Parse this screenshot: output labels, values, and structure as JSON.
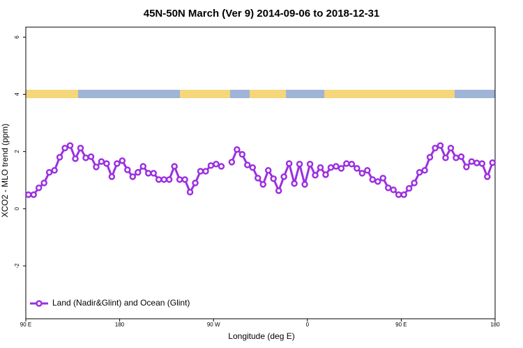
{
  "chart_data": {
    "type": "line",
    "title": "45N-50N March (Ver 9)   2014-09-06 to 2018-12-31",
    "x_label": "Longitude (deg E)",
    "y_label": "XCO2 - MLO trend (ppm)",
    "xlim": [
      90,
      540
    ],
    "ylim": [
      -3.85,
      6.35
    ],
    "xticks": [
      {
        "value": 90,
        "label": "90 E"
      },
      {
        "value": 180,
        "label": "180"
      },
      {
        "value": 270,
        "label": "90 W"
      },
      {
        "value": 360,
        "label": "0"
      },
      {
        "value": 450,
        "label": "90 E"
      },
      {
        "value": 540,
        "label": "180"
      }
    ],
    "yticks": [
      -2,
      0,
      2,
      4,
      6
    ],
    "legend": "bottom left",
    "x": [
      92.5,
      97.5,
      102.5,
      107.5,
      112.5,
      117.5,
      122.5,
      127.5,
      132.5,
      137.5,
      142.5,
      147.5,
      152.5,
      157.5,
      162.5,
      167.5,
      172.5,
      177.5,
      182.5,
      187.5,
      192.5,
      197.5,
      202.5,
      207.5,
      212.5,
      217.5,
      222.5,
      227.5,
      232.5,
      237.5,
      242.5,
      247.5,
      252.5,
      257.5,
      262.5,
      267.5,
      272.5,
      277.5,
      282.5,
      287.5,
      292.5,
      297.5,
      302.5,
      307.5,
      312.5,
      317.5,
      322.5,
      327.5,
      332.5,
      337.5,
      342.5,
      347.5,
      352.5,
      357.5,
      362.5,
      367.5,
      372.5,
      377.5,
      382.5,
      387.5,
      392.5,
      397.5,
      402.5,
      407.5,
      412.5,
      417.5,
      422.5,
      427.5,
      432.5,
      437.5,
      442.5,
      447.5,
      452.5,
      457.5,
      462.5,
      467.5,
      472.5,
      477.5,
      482.5,
      487.5,
      492.5,
      497.5,
      502.5,
      507.5,
      512.5,
      517.5,
      522.5,
      527.5,
      532.5,
      537.5
    ],
    "series": [
      {
        "name": "Land (Nadir&Glint) and Ocean (Glint)",
        "color": "#9b30e0",
        "values": [
          0.49,
          0.49,
          0.73,
          0.9,
          1.27,
          1.34,
          1.8,
          2.12,
          2.21,
          1.75,
          2.12,
          1.78,
          1.82,
          1.46,
          1.65,
          1.58,
          1.12,
          1.58,
          1.68,
          1.36,
          1.12,
          1.27,
          1.48,
          1.24,
          1.24,
          1.02,
          1.02,
          1.02,
          1.48,
          1.02,
          1.02,
          0.58,
          0.9,
          1.31,
          1.31,
          1.51,
          1.56,
          1.48,
          null,
          1.63,
          2.07,
          1.9,
          1.53,
          1.44,
          1.07,
          0.85,
          1.34,
          1.05,
          0.63,
          1.12,
          1.58,
          0.88,
          1.56,
          0.85,
          1.56,
          1.17,
          1.44,
          1.19,
          1.44,
          1.48,
          1.41,
          1.58,
          1.56,
          1.41,
          1.24,
          1.34,
          1.02,
          0.95,
          1.07,
          0.73,
          0.66,
          0.49,
          0.49,
          0.71,
          0.9,
          1.27,
          1.34,
          1.8,
          2.12,
          2.21,
          1.78,
          2.12,
          1.78,
          1.82,
          1.46,
          1.65,
          1.6,
          1.58,
          1.12,
          1.61
        ]
      }
    ]
  }
}
